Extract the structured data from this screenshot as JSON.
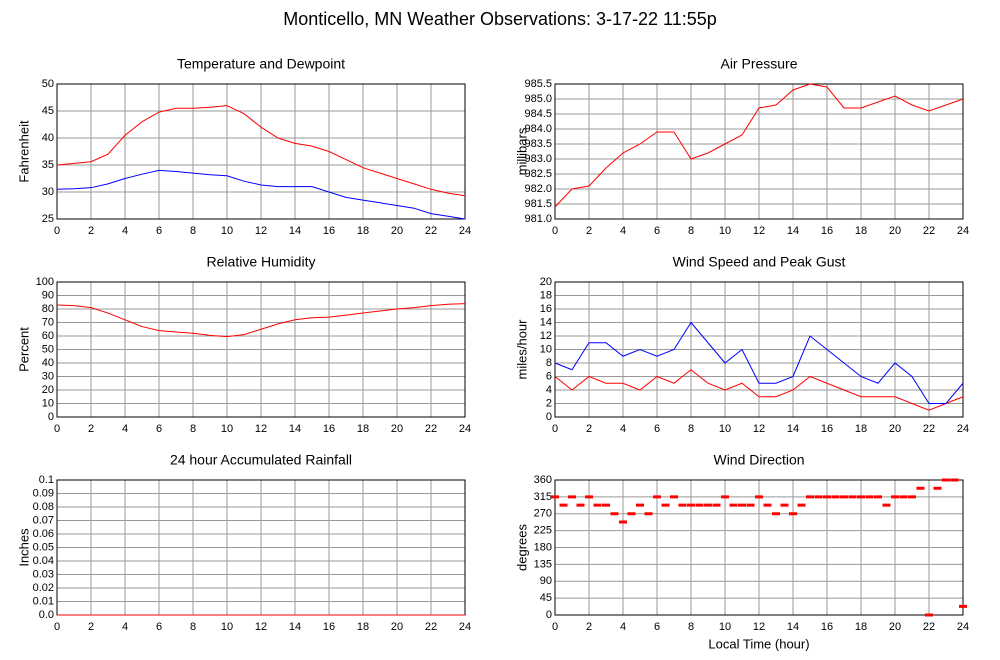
{
  "page_title": "Monticello, MN Weather Observations: 3-17-22 11:55p",
  "chart_data": [
    {
      "type": "line",
      "title": "Temperature and Dewpoint",
      "ylabel": "Fahrenheit",
      "x": [
        0,
        1,
        2,
        3,
        4,
        5,
        6,
        7,
        8,
        9,
        10,
        11,
        12,
        13,
        14,
        15,
        16,
        17,
        18,
        19,
        20,
        21,
        22,
        23,
        24
      ],
      "xlim": [
        0,
        24
      ],
      "xticks": [
        0,
        2,
        4,
        6,
        8,
        10,
        12,
        14,
        16,
        18,
        20,
        22,
        24
      ],
      "ylim": [
        25,
        50
      ],
      "yticks": [
        25,
        30,
        35,
        40,
        45,
        50
      ],
      "grid": true,
      "series": [
        {
          "name": "Temperature",
          "color": "#ff0000",
          "values": [
            35,
            35.3,
            35.6,
            37,
            40.5,
            43,
            44.8,
            45.5,
            45.5,
            45.7,
            46,
            44.5,
            42,
            40,
            39,
            38.5,
            37.5,
            36,
            34.5,
            33.5,
            32.5,
            31.5,
            30.5,
            29.8,
            29.3
          ]
        },
        {
          "name": "Dewpoint",
          "color": "#0000ff",
          "values": [
            30.5,
            30.6,
            30.8,
            31.5,
            32.5,
            33.3,
            34,
            33.8,
            33.5,
            33.2,
            33,
            32,
            31.3,
            31,
            31,
            31,
            30,
            29,
            28.5,
            28,
            27.5,
            27,
            26,
            25.5,
            25
          ]
        }
      ]
    },
    {
      "type": "line",
      "title": "Air Pressure",
      "ylabel": "millibars",
      "x": [
        0,
        1,
        2,
        3,
        4,
        5,
        6,
        7,
        8,
        9,
        10,
        11,
        12,
        13,
        14,
        15,
        16,
        17,
        18,
        19,
        20,
        21,
        22,
        23,
        24
      ],
      "xlim": [
        0,
        24
      ],
      "xticks": [
        0,
        2,
        4,
        6,
        8,
        10,
        12,
        14,
        16,
        18,
        20,
        22,
        24
      ],
      "ylim": [
        981,
        985.5
      ],
      "yticks": [
        {
          "value": 981,
          "label": "981.0"
        },
        981.5,
        {
          "value": 982,
          "label": "982.0"
        },
        982.5,
        {
          "value": 983,
          "label": "983.0"
        },
        983.5,
        {
          "value": 984,
          "label": "984.0"
        },
        984.5,
        {
          "value": 985,
          "label": "985.0"
        },
        985.5
      ],
      "grid": true,
      "series": [
        {
          "name": "Pressure",
          "color": "#ff0000",
          "values": [
            981.4,
            982,
            982.1,
            982.7,
            983.2,
            983.5,
            983.9,
            983.9,
            983,
            983.2,
            983.5,
            983.8,
            984.7,
            984.8,
            985.3,
            985.5,
            985.4,
            984.7,
            984.7,
            984.9,
            985.1,
            984.8,
            984.6,
            984.8,
            985
          ]
        }
      ]
    },
    {
      "type": "line",
      "title": "Relative Humidity",
      "ylabel": "Percent",
      "x": [
        0,
        1,
        2,
        3,
        4,
        5,
        6,
        7,
        8,
        9,
        10,
        11,
        12,
        13,
        14,
        15,
        16,
        17,
        18,
        19,
        20,
        21,
        22,
        23,
        24
      ],
      "xlim": [
        0,
        24
      ],
      "xticks": [
        0,
        2,
        4,
        6,
        8,
        10,
        12,
        14,
        16,
        18,
        20,
        22,
        24
      ],
      "ylim": [
        0,
        100
      ],
      "yticks": [
        0,
        10,
        20,
        30,
        40,
        50,
        60,
        70,
        80,
        90,
        100
      ],
      "grid": true,
      "series": [
        {
          "name": "Humidity",
          "color": "#ff0000",
          "values": [
            83,
            82.5,
            81,
            77,
            72,
            67,
            64,
            63,
            62,
            60.5,
            59.5,
            61,
            65,
            69,
            72,
            73.5,
            74,
            75.5,
            77,
            78.5,
            80,
            81,
            82.5,
            83.5,
            84
          ]
        }
      ]
    },
    {
      "type": "line",
      "title": "Wind Speed and Peak Gust",
      "ylabel": "miles/hour",
      "x": [
        0,
        1,
        2,
        3,
        4,
        5,
        6,
        7,
        8,
        9,
        10,
        11,
        12,
        13,
        14,
        15,
        16,
        17,
        18,
        19,
        20,
        21,
        22,
        23,
        24
      ],
      "xlim": [
        0,
        24
      ],
      "xticks": [
        0,
        2,
        4,
        6,
        8,
        10,
        12,
        14,
        16,
        18,
        20,
        22,
        24
      ],
      "ylim": [
        0,
        20
      ],
      "yticks": [
        0,
        2,
        4,
        6,
        8,
        10,
        12,
        14,
        16,
        18,
        20
      ],
      "grid": true,
      "series": [
        {
          "name": "Wind Speed",
          "color": "#ff0000",
          "values": [
            6,
            4,
            6,
            5,
            5,
            4,
            6,
            5,
            7,
            5,
            4,
            5,
            3,
            3,
            4,
            6,
            5,
            4,
            3,
            3,
            3,
            2,
            1,
            2,
            3
          ]
        },
        {
          "name": "Peak Gust",
          "color": "#0000ff",
          "values": [
            8,
            7,
            11,
            11,
            9,
            10,
            9,
            10,
            14,
            11,
            8,
            10,
            5,
            5,
            6,
            12,
            10,
            8,
            6,
            5,
            8,
            6,
            2,
            2,
            5
          ]
        }
      ]
    },
    {
      "type": "line",
      "title": "24 hour Accumulated Rainfall",
      "ylabel": "Inches",
      "x": [
        0,
        1,
        2,
        3,
        4,
        5,
        6,
        7,
        8,
        9,
        10,
        11,
        12,
        13,
        14,
        15,
        16,
        17,
        18,
        19,
        20,
        21,
        22,
        23,
        24
      ],
      "xlim": [
        0,
        24
      ],
      "xticks": [
        0,
        2,
        4,
        6,
        8,
        10,
        12,
        14,
        16,
        18,
        20,
        22,
        24
      ],
      "ylim": [
        0,
        0.1
      ],
      "yticks": [
        {
          "value": 0,
          "label": "0.0"
        },
        0.01,
        0.02,
        0.03,
        0.04,
        0.05,
        0.06,
        0.07,
        0.08,
        0.09,
        0.1
      ],
      "grid": true,
      "series": [
        {
          "name": "Rainfall",
          "color": "#ff0000",
          "values": [
            0,
            0,
            0,
            0,
            0,
            0,
            0,
            0,
            0,
            0,
            0,
            0,
            0,
            0,
            0,
            0,
            0,
            0,
            0,
            0,
            0,
            0,
            0,
            0,
            0
          ]
        }
      ]
    },
    {
      "type": "scatter",
      "title": "Wind Direction",
      "ylabel": "degrees",
      "xlabel": "Local Time (hour)",
      "x": [
        0,
        0.5,
        1,
        1.5,
        2,
        2.5,
        3,
        3.5,
        4,
        4.5,
        5,
        5.5,
        6,
        6.5,
        7,
        7.5,
        8,
        8.5,
        9,
        9.5,
        10,
        10.5,
        11,
        11.5,
        12,
        12.5,
        13,
        13.5,
        14,
        14.5,
        15,
        15.5,
        16,
        16.5,
        17,
        17.5,
        18,
        18.5,
        19,
        19.5,
        20,
        20.5,
        21,
        21.5,
        22,
        22.5,
        23,
        23.5,
        24
      ],
      "xlim": [
        0,
        24
      ],
      "xticks": [
        0,
        2,
        4,
        6,
        8,
        10,
        12,
        14,
        16,
        18,
        20,
        22,
        24
      ],
      "ylim": [
        0,
        360
      ],
      "yticks": [
        0,
        45,
        90,
        135,
        180,
        225,
        270,
        315,
        360
      ],
      "grid": true,
      "series": [
        {
          "name": "Direction",
          "color": "#ff0000",
          "values": [
            315,
            293,
            315,
            293,
            315,
            293,
            293,
            270,
            248,
            270,
            293,
            270,
            315,
            293,
            315,
            293,
            293,
            293,
            293,
            293,
            315,
            293,
            293,
            293,
            315,
            293,
            270,
            293,
            270,
            293,
            315,
            315,
            315,
            315,
            315,
            315,
            315,
            315,
            315,
            293,
            315,
            315,
            315,
            338,
            0,
            338,
            360,
            360,
            23
          ]
        }
      ]
    }
  ]
}
